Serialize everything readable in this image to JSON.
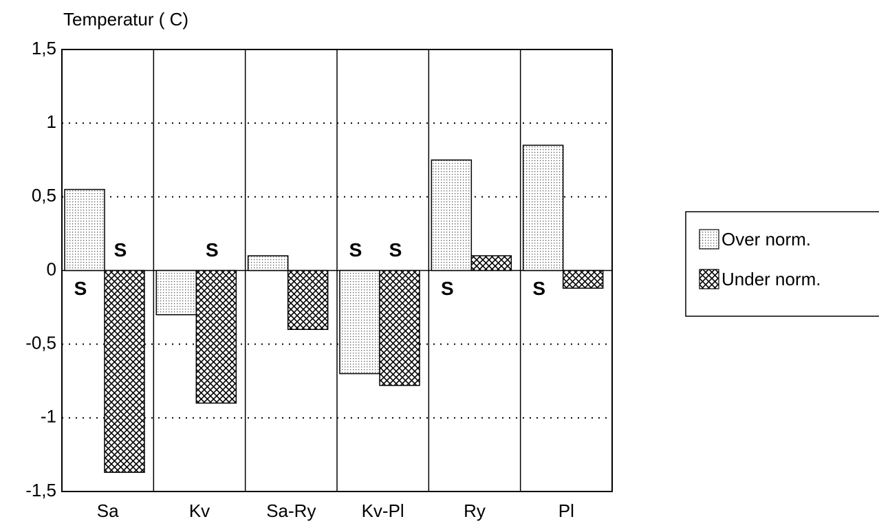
{
  "chart_data": {
    "type": "bar",
    "y_label": "Temperatur ( C)",
    "categories": [
      "Sa",
      "Kv",
      "Sa-Ry",
      "Kv-Pl",
      "Ry",
      "Pl"
    ],
    "series": [
      {
        "name": "Over norm.",
        "color": "#ffffff",
        "pattern": "dots",
        "values": [
          0.55,
          -0.3,
          0.1,
          -0.7,
          0.75,
          0.85
        ]
      },
      {
        "name": "Under norm.",
        "color": "#ffffff",
        "pattern": "crosshatch",
        "values": [
          -1.37,
          -0.9,
          -0.4,
          -0.78,
          0.1,
          -0.12
        ]
      }
    ],
    "annotations": [
      "S",
      "S",
      "S",
      "S",
      "S",
      "S",
      "S"
    ],
    "ylim": [
      -1.5,
      1.5
    ],
    "yticks": [
      {
        "value": -1.5,
        "label": "-1,5"
      },
      -1,
      {
        "value": -0.5,
        "label": "-0,5"
      },
      0,
      {
        "value": 0.5,
        "label": "0,5"
      },
      1,
      {
        "value": 1.5,
        "label": "1,5"
      }
    ],
    "grid": true,
    "legend": "right"
  }
}
